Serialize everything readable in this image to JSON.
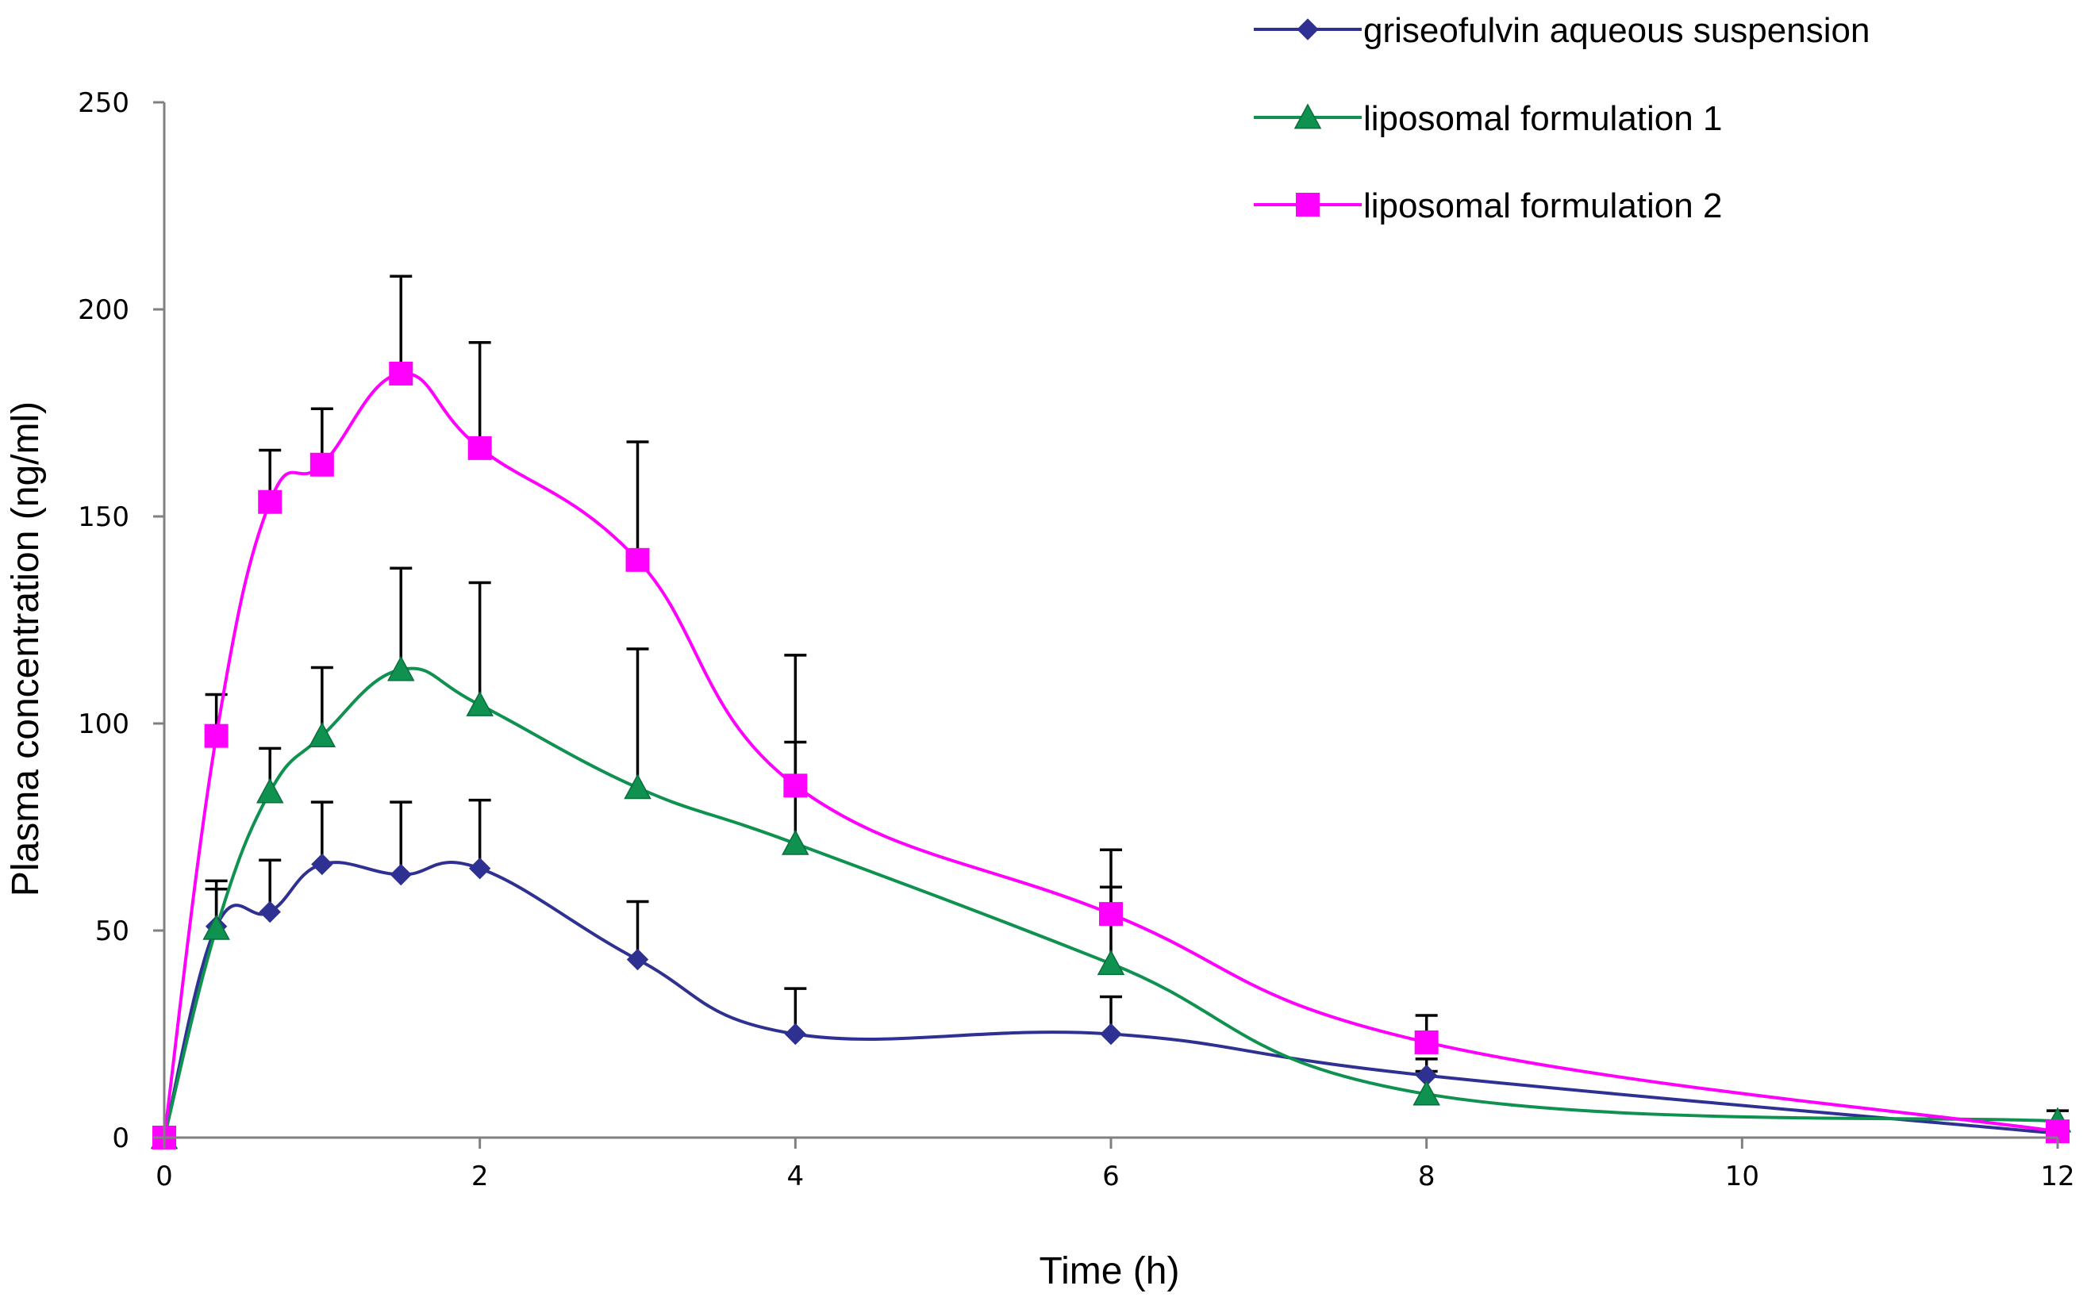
{
  "chart_data": {
    "type": "line",
    "title": "",
    "xlabel": "Time (h)",
    "ylabel": "Plasma concentration (ng/ml)",
    "xlim": [
      0,
      12
    ],
    "ylim": [
      0,
      250
    ],
    "xticks": [
      0,
      2,
      4,
      6,
      8,
      10,
      12
    ],
    "yticks": [
      0,
      50,
      100,
      150,
      200,
      250
    ],
    "grid": false,
    "legend_position": "top-right",
    "series": [
      {
        "name": "griseofulvin aqueous suspension",
        "color": "#2E3192",
        "marker": "diamond",
        "x": [
          0,
          0.33,
          0.67,
          1,
          1.5,
          2,
          3,
          4,
          6,
          8,
          12
        ],
        "y": [
          0,
          51,
          54.5,
          66,
          63.5,
          65,
          43,
          25,
          25,
          15,
          1
        ],
        "error": [
          0,
          11,
          12.5,
          15,
          17.5,
          16.5,
          14,
          11,
          9,
          4,
          0
        ]
      },
      {
        "name": "liposomal formulation 1",
        "color": "#0F9150",
        "marker": "triangle",
        "x": [
          0,
          0.33,
          0.67,
          1,
          1.5,
          2,
          3,
          4,
          6,
          8,
          12
        ],
        "y": [
          0,
          50.5,
          83.5,
          97,
          113,
          104.5,
          84.5,
          71,
          42,
          10.5,
          4
        ],
        "error": [
          0,
          9.5,
          10.5,
          16.5,
          24.5,
          29.5,
          33.5,
          24.5,
          18.5,
          5.5,
          2.5
        ]
      },
      {
        "name": "liposomal formulation 2",
        "color": "#FF00FF",
        "marker": "square",
        "x": [
          0,
          0.33,
          0.67,
          1,
          1.5,
          2,
          3,
          4,
          6,
          8,
          12
        ],
        "y": [
          0,
          97,
          153.5,
          162.5,
          184.5,
          166.5,
          139.5,
          85,
          54,
          23,
          1.5
        ],
        "error": [
          0,
          10,
          12.5,
          13.5,
          23.5,
          25.5,
          28.5,
          31.5,
          15.5,
          6.5,
          0
        ]
      }
    ]
  }
}
